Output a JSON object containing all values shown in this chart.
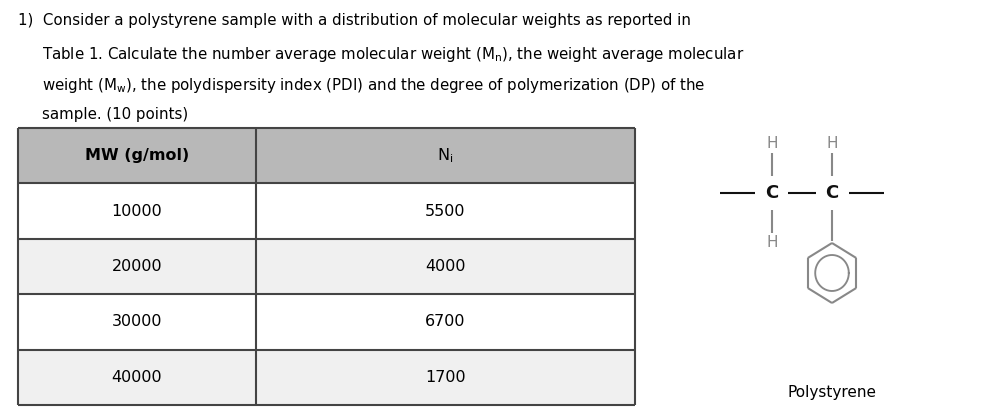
{
  "table_headers": [
    "MW (g/mol)",
    "N"
  ],
  "table_rows": [
    [
      "10000",
      "5500"
    ],
    [
      "20000",
      "4000"
    ],
    [
      "30000",
      "6700"
    ],
    [
      "40000",
      "1700"
    ]
  ],
  "header_bg": "#b8b8b8",
  "row_bg_even": "#f0f0f0",
  "row_bg_odd": "#ffffff",
  "table_border_color": "#444444",
  "text_color": "#000000",
  "label_polystyrene": "Polystyrene",
  "fig_width": 9.94,
  "fig_height": 4.13,
  "struct_gray": "#888888",
  "struct_dark": "#111111"
}
